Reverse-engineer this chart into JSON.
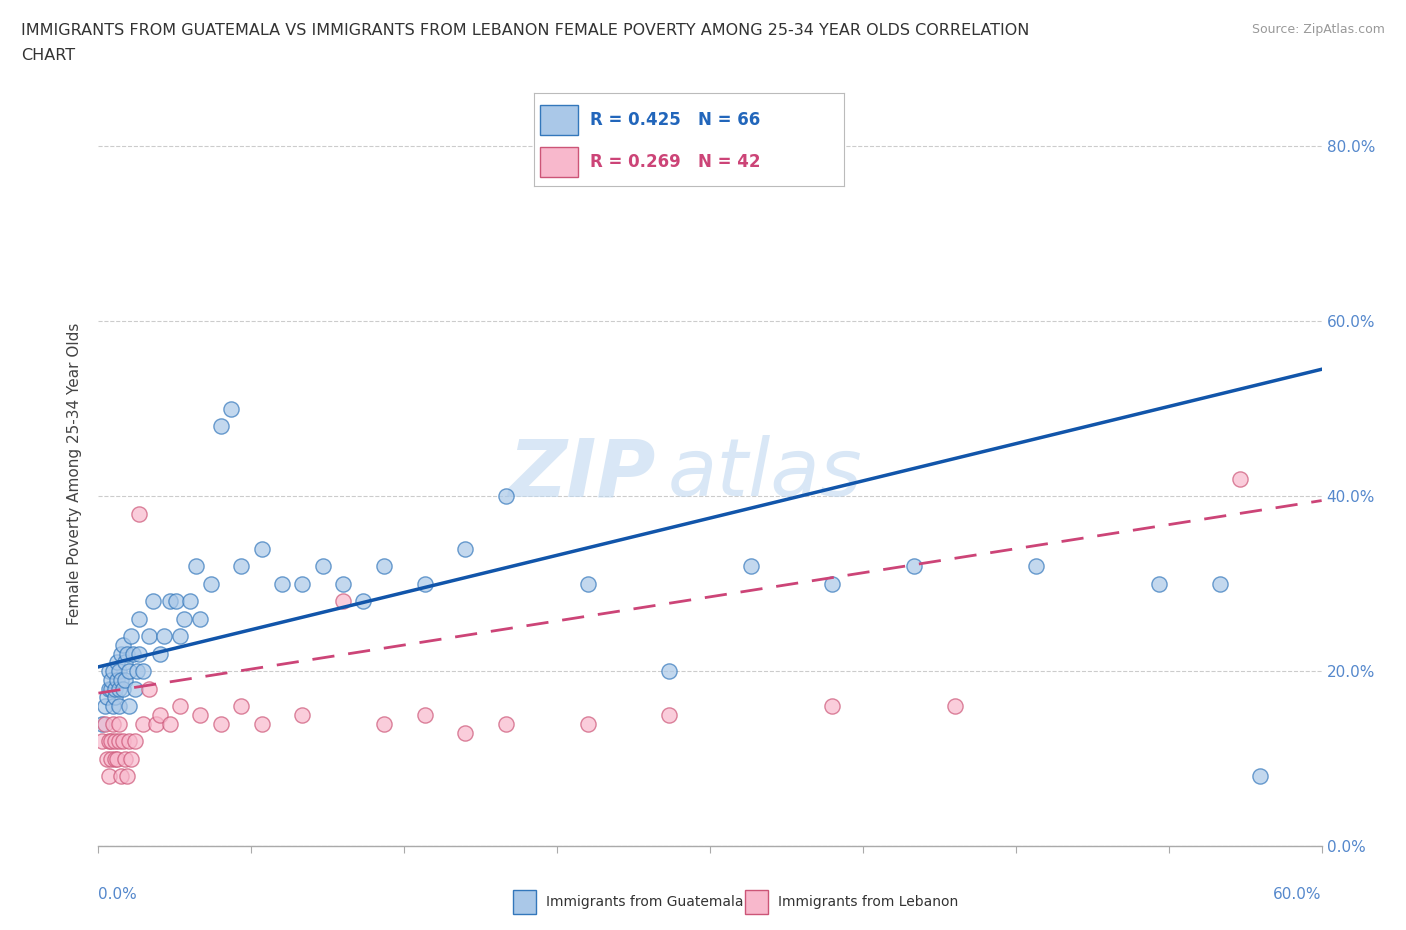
{
  "title_line1": "IMMIGRANTS FROM GUATEMALA VS IMMIGRANTS FROM LEBANON FEMALE POVERTY AMONG 25-34 YEAR OLDS CORRELATION",
  "title_line2": "CHART",
  "source": "Source: ZipAtlas.com",
  "ylabel": "Female Poverty Among 25-34 Year Olds",
  "xlim": [
    0.0,
    0.6
  ],
  "ylim": [
    0.0,
    0.85
  ],
  "yticks": [
    0.0,
    0.2,
    0.4,
    0.6,
    0.8
  ],
  "ytick_labels": [
    "0.0%",
    "20.0%",
    "40.0%",
    "60.0%",
    "80.0%"
  ],
  "R1": 0.425,
  "N1": 66,
  "R2": 0.269,
  "N2": 42,
  "color_guatemala_face": "#aac8e8",
  "color_guatemala_edge": "#3377bb",
  "color_lebanon_face": "#f8b8cc",
  "color_lebanon_edge": "#cc5577",
  "color_line_guatemala": "#1155aa",
  "color_line_lebanon": "#cc4477",
  "guatemala_x": [
    0.002,
    0.003,
    0.004,
    0.005,
    0.005,
    0.006,
    0.006,
    0.007,
    0.007,
    0.008,
    0.008,
    0.009,
    0.009,
    0.01,
    0.01,
    0.01,
    0.011,
    0.011,
    0.012,
    0.012,
    0.013,
    0.013,
    0.014,
    0.015,
    0.015,
    0.016,
    0.017,
    0.018,
    0.019,
    0.02,
    0.02,
    0.022,
    0.025,
    0.027,
    0.03,
    0.032,
    0.035,
    0.038,
    0.04,
    0.042,
    0.045,
    0.048,
    0.05,
    0.055,
    0.06,
    0.065,
    0.07,
    0.08,
    0.09,
    0.1,
    0.11,
    0.12,
    0.13,
    0.14,
    0.16,
    0.18,
    0.2,
    0.24,
    0.28,
    0.32,
    0.36,
    0.4,
    0.46,
    0.52,
    0.55,
    0.57
  ],
  "guatemala_y": [
    0.14,
    0.16,
    0.17,
    0.18,
    0.2,
    0.18,
    0.19,
    0.16,
    0.2,
    0.17,
    0.18,
    0.19,
    0.21,
    0.16,
    0.18,
    0.2,
    0.19,
    0.22,
    0.18,
    0.23,
    0.19,
    0.21,
    0.22,
    0.16,
    0.2,
    0.24,
    0.22,
    0.18,
    0.2,
    0.22,
    0.26,
    0.2,
    0.24,
    0.28,
    0.22,
    0.24,
    0.28,
    0.28,
    0.24,
    0.26,
    0.28,
    0.32,
    0.26,
    0.3,
    0.48,
    0.5,
    0.32,
    0.34,
    0.3,
    0.3,
    0.32,
    0.3,
    0.28,
    0.32,
    0.3,
    0.34,
    0.4,
    0.3,
    0.2,
    0.32,
    0.3,
    0.32,
    0.32,
    0.3,
    0.3,
    0.08
  ],
  "lebanon_x": [
    0.002,
    0.003,
    0.004,
    0.005,
    0.005,
    0.006,
    0.006,
    0.007,
    0.008,
    0.008,
    0.009,
    0.01,
    0.01,
    0.011,
    0.012,
    0.013,
    0.014,
    0.015,
    0.016,
    0.018,
    0.02,
    0.022,
    0.025,
    0.028,
    0.03,
    0.035,
    0.04,
    0.05,
    0.06,
    0.07,
    0.08,
    0.1,
    0.12,
    0.14,
    0.16,
    0.18,
    0.2,
    0.24,
    0.28,
    0.36,
    0.42,
    0.56
  ],
  "lebanon_y": [
    0.12,
    0.14,
    0.1,
    0.12,
    0.08,
    0.1,
    0.12,
    0.14,
    0.1,
    0.12,
    0.1,
    0.12,
    0.14,
    0.08,
    0.12,
    0.1,
    0.08,
    0.12,
    0.1,
    0.12,
    0.38,
    0.14,
    0.18,
    0.14,
    0.15,
    0.14,
    0.16,
    0.15,
    0.14,
    0.16,
    0.14,
    0.15,
    0.28,
    0.14,
    0.15,
    0.13,
    0.14,
    0.14,
    0.15,
    0.16,
    0.16,
    0.42
  ]
}
